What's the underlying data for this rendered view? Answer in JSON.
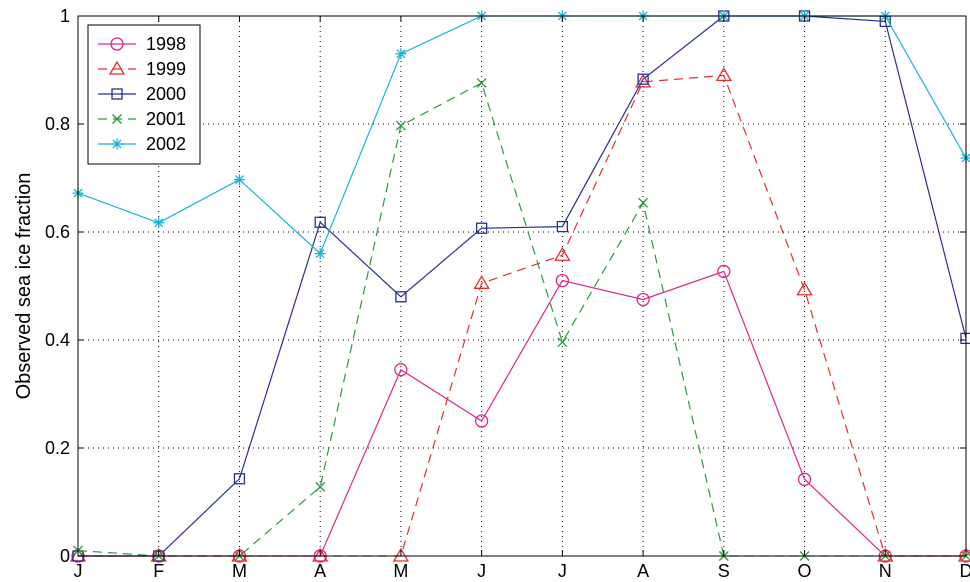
{
  "chart_data": {
    "type": "line",
    "ylabel": "Observed sea ice fraction",
    "x": [
      "J",
      "F",
      "M",
      "A",
      "M",
      "J",
      "J",
      "A",
      "S",
      "O",
      "N",
      "D"
    ],
    "ylim": [
      0,
      1
    ],
    "yticks": [
      "0",
      "0.2",
      "0.4",
      "0.6",
      "0.8",
      "1"
    ],
    "grid": true,
    "legend_position": "top-left",
    "series": [
      {
        "name": "1998",
        "color": "#e0248c",
        "line_style": "solid",
        "marker": "circle",
        "values": [
          0,
          0,
          0,
          0,
          0.345,
          0.25,
          0.51,
          0.475,
          0.527,
          0.142,
          0,
          0
        ]
      },
      {
        "name": "1999",
        "color": "#e0302c",
        "line_style": "dashed",
        "marker": "triangle",
        "values": [
          0,
          0,
          0,
          0,
          0,
          0.505,
          0.557,
          0.878,
          0.89,
          0.493,
          0,
          0
        ]
      },
      {
        "name": "2000",
        "color": "#283090",
        "line_style": "solid",
        "marker": "square",
        "values": [
          0,
          0,
          0.143,
          0.618,
          0.48,
          0.607,
          0.61,
          0.883,
          1.0,
          1.0,
          0.99,
          0.403
        ]
      },
      {
        "name": "2001",
        "color": "#2a9a3a",
        "line_style": "dashed",
        "marker": "x",
        "values": [
          0.01,
          0,
          0,
          0.128,
          0.797,
          0.876,
          0.396,
          0.654,
          0,
          0,
          0,
          0
        ]
      },
      {
        "name": "2002",
        "color": "#17b4d6",
        "line_style": "solid",
        "marker": "star",
        "values": [
          0.672,
          0.617,
          0.697,
          0.56,
          0.93,
          1.0,
          1.0,
          1.0,
          1.0,
          1.0,
          1.0,
          0.737
        ]
      }
    ]
  }
}
